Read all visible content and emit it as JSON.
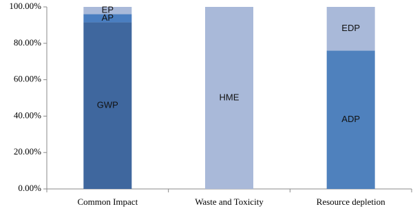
{
  "chart_data": {
    "type": "stacked-bar",
    "categories": [
      "Common Impact",
      "Waste and Toxicity",
      "Resource depletion"
    ],
    "series": [
      {
        "name": "GWP",
        "color": "#3f679e",
        "values": [
          91.5,
          null,
          null
        ]
      },
      {
        "name": "AP",
        "color": "#4a7ec0",
        "values": [
          4.5,
          null,
          null
        ]
      },
      {
        "name": "EP",
        "color": "#a9b9d9",
        "values": [
          4,
          null,
          null
        ]
      },
      {
        "name": "HME",
        "color": "#a9b9d9",
        "values": [
          null,
          100,
          null
        ]
      },
      {
        "name": "ADP",
        "color": "#4f81bd",
        "values": [
          null,
          null,
          76
        ]
      },
      {
        "name": "EDP",
        "color": "#a9b9d9",
        "values": [
          null,
          null,
          24
        ]
      }
    ],
    "ylim": [
      0,
      100
    ],
    "yticks": [
      {
        "value": 0,
        "label": "0.00%"
      },
      {
        "value": 20,
        "label": "20.00%"
      },
      {
        "value": 40,
        "label": "40.00%"
      },
      {
        "value": 60,
        "label": "60.00%"
      },
      {
        "value": 80,
        "label": "80.00%"
      },
      {
        "value": 100,
        "label": "100.00%"
      }
    ],
    "grid": false
  }
}
